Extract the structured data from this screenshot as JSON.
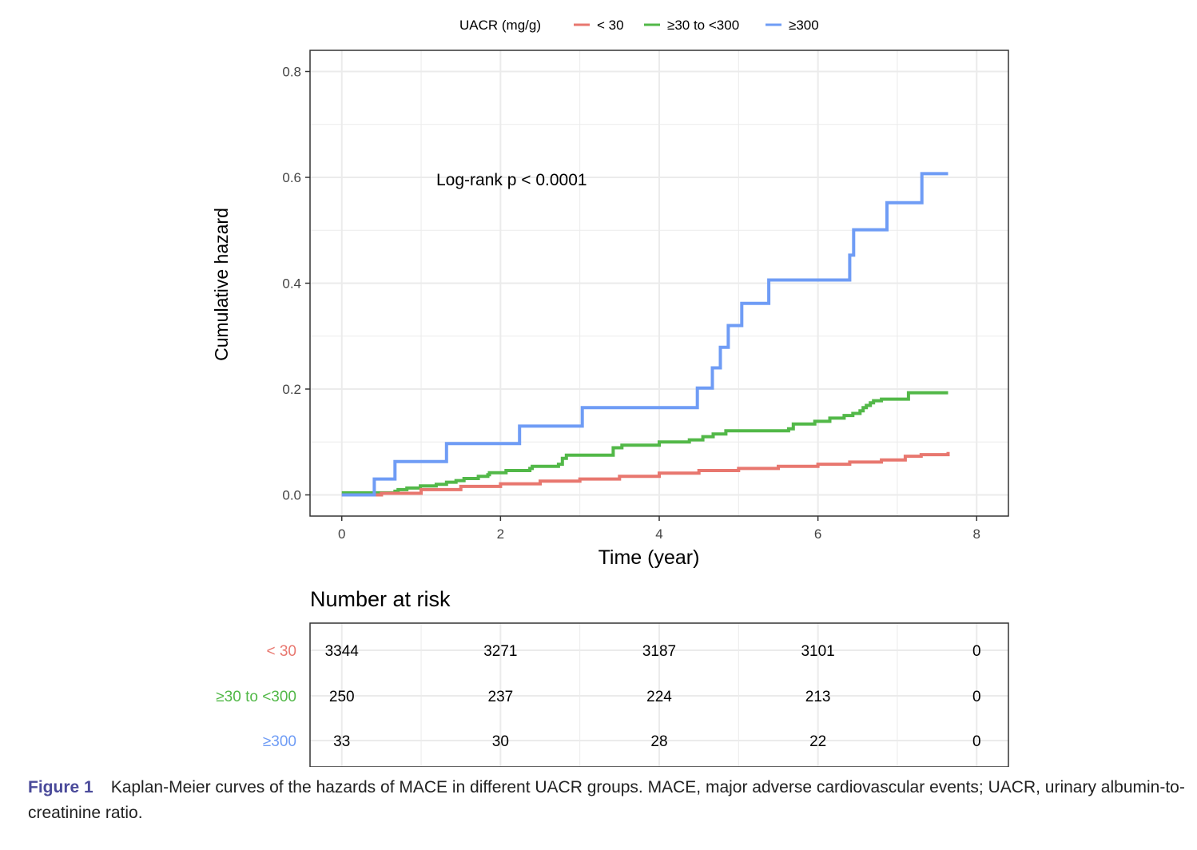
{
  "chart_data": {
    "type": "line",
    "subtype": "step",
    "title": "",
    "xlabel": "Time (year)",
    "ylabel": "Cumulative hazard",
    "xlim": [
      -0.4,
      8.4
    ],
    "ylim": [
      -0.04,
      0.84
    ],
    "xticks": [
      0,
      2,
      4,
      6,
      8
    ],
    "xtick_labels": [
      "0",
      "2",
      "4",
      "6",
      "8"
    ],
    "yticks": [
      0.0,
      0.2,
      0.4,
      0.6,
      0.8
    ],
    "ytick_labels": [
      "0.0",
      "0.2",
      "0.4",
      "0.6",
      "0.8"
    ],
    "grid": true,
    "legend": {
      "title": "UACR (mg/g)",
      "position": "top",
      "entries": [
        "< 30",
        "≥30 to <300",
        "≥300"
      ]
    },
    "annotation": "Log-rank p < 0.0001",
    "series": [
      {
        "name": "< 30",
        "color": "#E8776F",
        "x": [
          0,
          0.5,
          1.0,
          1.5,
          2.0,
          2.5,
          3.0,
          3.5,
          4.0,
          4.5,
          5.0,
          5.5,
          6.0,
          6.4,
          6.8,
          7.1,
          7.3,
          7.64
        ],
        "y": [
          0,
          0.003,
          0.01,
          0.016,
          0.021,
          0.026,
          0.03,
          0.035,
          0.041,
          0.046,
          0.05,
          0.054,
          0.058,
          0.062,
          0.066,
          0.073,
          0.076,
          0.081
        ]
      },
      {
        "name": "≥30 to <300",
        "color": "#52B848",
        "x": [
          0,
          0.67,
          0.71,
          0.82,
          0.99,
          1.19,
          1.32,
          1.44,
          1.54,
          1.72,
          1.84,
          1.86,
          2.07,
          2.37,
          2.4,
          2.73,
          2.78,
          2.83,
          3.38,
          3.42,
          3.53,
          3.98,
          4.0,
          4.38,
          4.55,
          4.68,
          4.84,
          5.61,
          5.63,
          5.69,
          5.96,
          6.15,
          6.33,
          6.44,
          6.53,
          6.57,
          6.61,
          6.66,
          6.7,
          6.8,
          7.14,
          7.64
        ],
        "y": [
          0.004,
          0.007,
          0.01,
          0.013,
          0.017,
          0.02,
          0.024,
          0.027,
          0.031,
          0.035,
          0.038,
          0.042,
          0.046,
          0.05,
          0.054,
          0.058,
          0.069,
          0.075,
          0.075,
          0.089,
          0.094,
          0.094,
          0.1,
          0.104,
          0.11,
          0.115,
          0.121,
          0.121,
          0.125,
          0.134,
          0.139,
          0.145,
          0.15,
          0.154,
          0.159,
          0.165,
          0.169,
          0.174,
          0.178,
          0.181,
          0.193,
          0.193
        ]
      },
      {
        "name": "≥300",
        "color": "#6F9CF5",
        "x": [
          0,
          0.41,
          0.67,
          1.32,
          2.24,
          3.03,
          4.48,
          4.67,
          4.77,
          4.87,
          5.04,
          5.38,
          6.4,
          6.45,
          6.87,
          7.31,
          7.64
        ],
        "y": [
          0,
          0.03,
          0.063,
          0.097,
          0.13,
          0.165,
          0.202,
          0.24,
          0.279,
          0.32,
          0.362,
          0.406,
          0.453,
          0.501,
          0.552,
          0.607,
          0.607
        ]
      }
    ],
    "risk_table": {
      "title": "Number at risk",
      "times": [
        0,
        2,
        4,
        6,
        8
      ],
      "rows": [
        {
          "group": "< 30",
          "color": "#E8776F",
          "values": [
            "3344",
            "3271",
            "3187",
            "3101",
            "0"
          ]
        },
        {
          "group": "≥30 to <300",
          "color": "#52B848",
          "values": [
            "250",
            "237",
            "224",
            "213",
            "0"
          ]
        },
        {
          "group": "≥300",
          "color": "#6F9CF5",
          "values": [
            "33",
            "30",
            "28",
            "22",
            "0"
          ]
        }
      ]
    }
  },
  "caption": {
    "label": "Figure 1",
    "text": "Kaplan-Meier curves of the hazards of MACE in different UACR groups. MACE, major adverse cardiovascular events; UACR, urinary albumin-to-creatinine ratio."
  }
}
